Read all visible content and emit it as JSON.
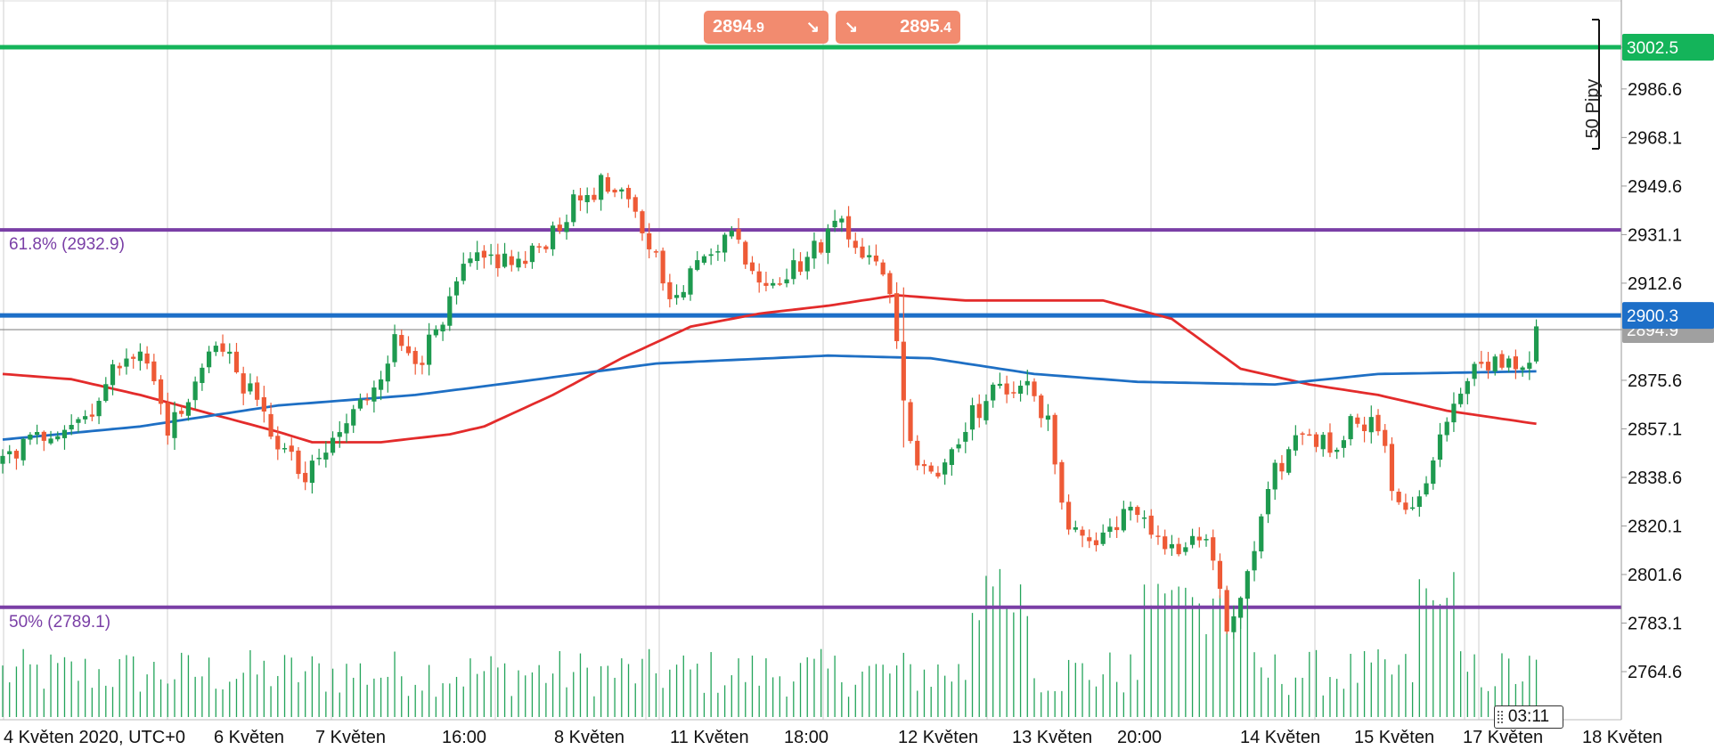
{
  "colors": {
    "bull": "#1e9a4f",
    "bear": "#ee5a36",
    "volume": "#23a45a",
    "ma_red": "#e32b2b",
    "ma_blue": "#1e6fc4",
    "fib": "#7a3fa6",
    "green_line": "#14b45a",
    "blue_line": "#1d6fc8",
    "price_line": "#888888",
    "grid": "#cfcfcf",
    "quote_bg": "#f28b6f"
  },
  "quotes": {
    "sell": {
      "main": "2894",
      "small": ".9",
      "icon": "arrow-down-right-icon"
    },
    "buy": {
      "main": "2895",
      "small": ".4",
      "icon": "arrow-down-right-icon"
    }
  },
  "measure": {
    "label": "50 Pipy"
  },
  "countdown": "03:11",
  "chart_data": {
    "type": "candlestick",
    "y_axis": {
      "ticks": [
        "2764.6",
        "2783.1",
        "2801.6",
        "2820.1",
        "2838.6",
        "2857.1",
        "2875.6",
        "2894.9",
        "2912.6",
        "2931.1",
        "2949.6",
        "2968.1",
        "2986.6",
        "3002.5"
      ],
      "range": [
        2747,
        3014
      ]
    },
    "x_axis": {
      "labels": [
        "4 Květen 2020, UTC+0",
        "6 Květen",
        "7 Květen",
        "16:00",
        "8 Květen",
        "11 Květen",
        "18:00",
        "12 Květen",
        "13 Květen",
        "20:00",
        "14 Květen",
        "15 Květen",
        "17 Květen",
        "18 Květen"
      ]
    },
    "horizontal_lines": [
      {
        "name": "resistance",
        "price": 3002.5,
        "label": "3002.5",
        "color": "#14b45a"
      },
      {
        "name": "fib-618",
        "price": 2932.9,
        "label": "61.8% (2932.9)",
        "color": "#7a3fa6"
      },
      {
        "name": "support",
        "price": 2900.3,
        "label": "2900.3",
        "color": "#1d6fc8"
      },
      {
        "name": "current-price",
        "price": 2894.9,
        "label": "2894.9",
        "color": "#888888"
      },
      {
        "name": "fib-50",
        "price": 2789.1,
        "label": "50% (2789.1)",
        "color": "#7a3fa6"
      }
    ],
    "close_anchors": [
      [
        0,
        2845
      ],
      [
        4,
        2852
      ],
      [
        8,
        2858
      ],
      [
        12,
        2862
      ],
      [
        15,
        2873
      ],
      [
        18,
        2888
      ],
      [
        21,
        2882
      ],
      [
        24,
        2858
      ],
      [
        27,
        2866
      ],
      [
        30,
        2890
      ],
      [
        33,
        2884
      ],
      [
        36,
        2870
      ],
      [
        40,
        2852
      ],
      [
        44,
        2837
      ],
      [
        48,
        2852
      ],
      [
        53,
        2870
      ],
      [
        57,
        2890
      ],
      [
        61,
        2885
      ],
      [
        64,
        2896
      ],
      [
        67,
        2918
      ],
      [
        71,
        2922
      ],
      [
        76,
        2920
      ],
      [
        80,
        2933
      ],
      [
        84,
        2945
      ],
      [
        87,
        2950
      ],
      [
        91,
        2942
      ],
      [
        94,
        2928
      ],
      [
        98,
        2905
      ],
      [
        102,
        2925
      ],
      [
        106,
        2932
      ],
      [
        110,
        2915
      ],
      [
        114,
        2916
      ],
      [
        118,
        2925
      ],
      [
        122,
        2938
      ],
      [
        125,
        2925
      ],
      [
        129,
        2911
      ],
      [
        132,
        2850
      ],
      [
        136,
        2840
      ],
      [
        140,
        2860
      ],
      [
        144,
        2870
      ],
      [
        148,
        2876
      ],
      [
        152,
        2858
      ],
      [
        155,
        2820
      ],
      [
        159,
        2813
      ],
      [
        163,
        2826
      ],
      [
        167,
        2818
      ],
      [
        171,
        2811
      ],
      [
        175,
        2816
      ],
      [
        178,
        2780
      ],
      [
        181,
        2800
      ],
      [
        185,
        2840
      ],
      [
        189,
        2857
      ],
      [
        193,
        2850
      ],
      [
        197,
        2862
      ],
      [
        200,
        2858
      ],
      [
        203,
        2825
      ],
      [
        206,
        2832
      ],
      [
        210,
        2860
      ],
      [
        214,
        2878
      ],
      [
        218,
        2884
      ],
      [
        221,
        2881
      ],
      [
        223,
        2892
      ]
    ],
    "red_ma_anchors": [
      [
        0,
        2878
      ],
      [
        10,
        2876
      ],
      [
        20,
        2870
      ],
      [
        30,
        2863
      ],
      [
        40,
        2856
      ],
      [
        45,
        2852
      ],
      [
        55,
        2852
      ],
      [
        65,
        2855
      ],
      [
        70,
        2858
      ],
      [
        80,
        2870
      ],
      [
        90,
        2884
      ],
      [
        100,
        2896
      ],
      [
        110,
        2901
      ],
      [
        120,
        2904
      ],
      [
        130,
        2908
      ],
      [
        140,
        2906
      ],
      [
        150,
        2906
      ],
      [
        160,
        2906
      ],
      [
        170,
        2899
      ],
      [
        180,
        2880
      ],
      [
        190,
        2874
      ],
      [
        200,
        2870
      ],
      [
        210,
        2864
      ],
      [
        223,
        2859
      ]
    ],
    "blue_ma_anchors": [
      [
        0,
        2853
      ],
      [
        20,
        2858
      ],
      [
        40,
        2866
      ],
      [
        60,
        2870
      ],
      [
        75,
        2875
      ],
      [
        95,
        2882
      ],
      [
        120,
        2885
      ],
      [
        135,
        2884
      ],
      [
        150,
        2878
      ],
      [
        165,
        2875
      ],
      [
        185,
        2874
      ],
      [
        200,
        2878
      ],
      [
        223,
        2879
      ]
    ],
    "volume_note": "volume histogram at bottom"
  }
}
